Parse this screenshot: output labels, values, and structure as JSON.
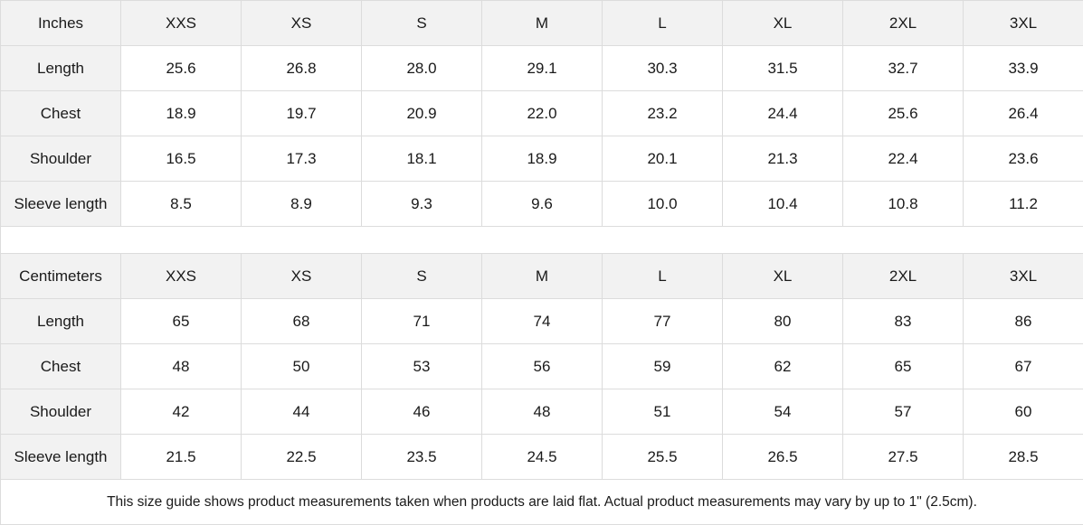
{
  "sizes": [
    "XXS",
    "XS",
    "S",
    "M",
    "L",
    "XL",
    "2XL",
    "3XL"
  ],
  "inches": {
    "header": "Inches",
    "rows": [
      {
        "label": "Length",
        "values": [
          "25.6",
          "26.8",
          "28.0",
          "29.1",
          "30.3",
          "31.5",
          "32.7",
          "33.9"
        ]
      },
      {
        "label": "Chest",
        "values": [
          "18.9",
          "19.7",
          "20.9",
          "22.0",
          "23.2",
          "24.4",
          "25.6",
          "26.4"
        ]
      },
      {
        "label": "Shoulder",
        "values": [
          "16.5",
          "17.3",
          "18.1",
          "18.9",
          "20.1",
          "21.3",
          "22.4",
          "23.6"
        ]
      },
      {
        "label": "Sleeve length",
        "values": [
          "8.5",
          "8.9",
          "9.3",
          "9.6",
          "10.0",
          "10.4",
          "10.8",
          "11.2"
        ]
      }
    ]
  },
  "centimeters": {
    "header": "Centimeters",
    "rows": [
      {
        "label": "Length",
        "values": [
          "65",
          "68",
          "71",
          "74",
          "77",
          "80",
          "83",
          "86"
        ]
      },
      {
        "label": "Chest",
        "values": [
          "48",
          "50",
          "53",
          "56",
          "59",
          "62",
          "65",
          "67"
        ]
      },
      {
        "label": "Shoulder",
        "values": [
          "42",
          "44",
          "46",
          "48",
          "51",
          "54",
          "57",
          "60"
        ]
      },
      {
        "label": "Sleeve length",
        "values": [
          "21.5",
          "22.5",
          "23.5",
          "24.5",
          "25.5",
          "26.5",
          "27.5",
          "28.5"
        ]
      }
    ]
  },
  "note": "This size guide shows product measurements taken when products are laid flat.  Actual product measurements may vary by up to 1\" (2.5cm).",
  "colors": {
    "header_bg": "#f2f2f2",
    "border": "#dcdcdc"
  }
}
